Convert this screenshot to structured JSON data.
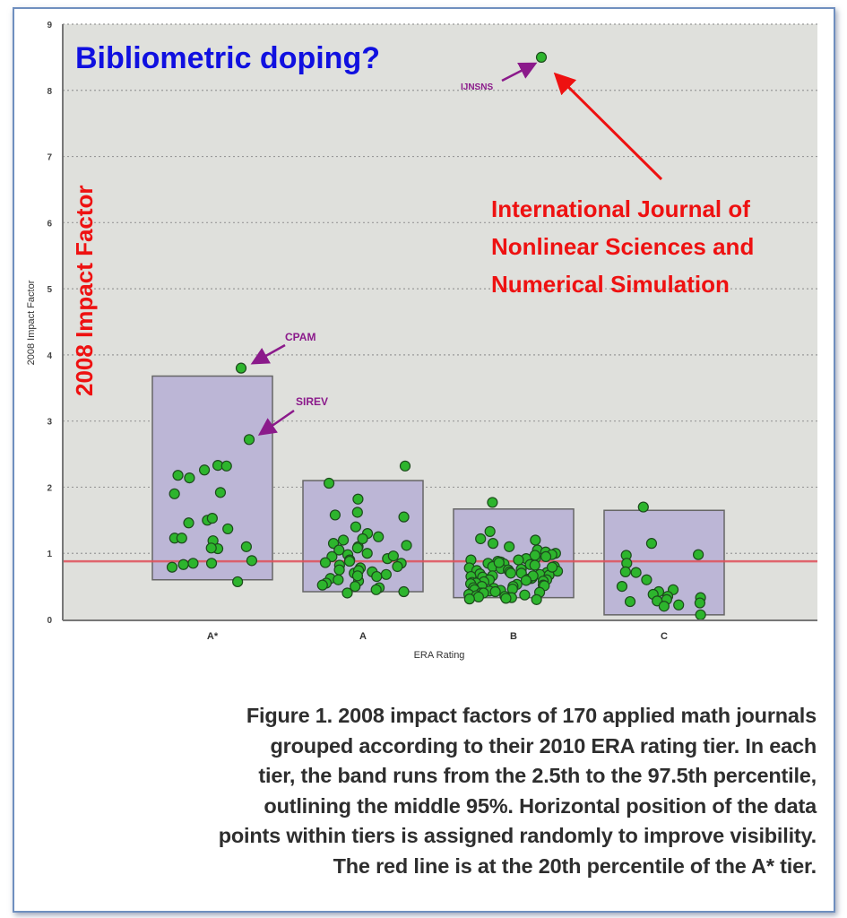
{
  "overlay": {
    "headline": "Bibliometric doping?",
    "yaxis_overlay": "2008 Impact Factor",
    "callout_lines": [
      "International Journal of",
      "Nonlinear Sciences and",
      "Numerical Simulation"
    ],
    "colors": {
      "headline": "#1010e0",
      "callout": "#ee1111",
      "label": "#8b1a8b"
    }
  },
  "chart_data": {
    "type": "scatter",
    "xlabel": "ERA Rating",
    "ylabel": "2008 Impact Factor",
    "ylim": [
      0,
      9
    ],
    "yticks": [
      "0",
      "1",
      "2",
      "3",
      "4",
      "5",
      "6",
      "7",
      "8",
      "9"
    ],
    "categories": [
      "A*",
      "A",
      "B",
      "C"
    ],
    "grid": "horizontal dotted",
    "reference_line": {
      "value": 0.88,
      "color": "#e0505a"
    },
    "bands": [
      {
        "tier": "A*",
        "low": 0.6,
        "high": 3.68
      },
      {
        "tier": "A",
        "low": 0.42,
        "high": 2.1
      },
      {
        "tier": "B",
        "low": 0.33,
        "high": 1.67
      },
      {
        "tier": "C",
        "low": 0.07,
        "high": 1.65
      }
    ],
    "points": {
      "A*": [
        0.85,
        2.33,
        2.18,
        2.14,
        1.5,
        1.19,
        1.23,
        1.1,
        1.92,
        2.26,
        0.85,
        0.57,
        3.8,
        2.72,
        2.32,
        1.9,
        1.53,
        1.46,
        1.37,
        1.23,
        1.07,
        1.08,
        0.83,
        0.79,
        0.89
      ],
      "A": [
        2.32,
        2.06,
        1.82,
        1.55,
        1.58,
        1.4,
        1.3,
        1.25,
        1.2,
        1.15,
        1.12,
        1.1,
        1.05,
        1.0,
        0.98,
        0.95,
        0.92,
        0.9,
        0.88,
        0.86,
        0.85,
        0.82,
        0.8,
        0.78,
        0.75,
        0.72,
        0.7,
        0.68,
        0.65,
        0.62,
        0.6,
        0.58,
        0.55,
        0.52,
        0.5,
        0.48,
        0.45,
        0.42,
        0.4,
        1.62,
        1.22,
        1.08,
        0.96,
        0.74,
        0.66
      ],
      "B": [
        8.5,
        1.77,
        1.33,
        1.2,
        1.22,
        1.15,
        1.05,
        1.02,
        1.0,
        0.98,
        0.95,
        0.93,
        0.92,
        0.9,
        0.9,
        0.88,
        0.87,
        0.85,
        0.84,
        0.83,
        0.82,
        0.8,
        0.8,
        0.78,
        0.77,
        0.76,
        0.75,
        0.74,
        0.73,
        0.72,
        0.71,
        0.7,
        0.7,
        0.69,
        0.68,
        0.67,
        0.66,
        0.65,
        0.64,
        0.63,
        0.62,
        0.61,
        0.6,
        0.6,
        0.58,
        0.57,
        0.56,
        0.55,
        0.54,
        0.53,
        0.52,
        0.51,
        0.5,
        0.5,
        0.48,
        0.47,
        0.46,
        0.45,
        0.44,
        0.43,
        0.42,
        0.41,
        0.4,
        0.4,
        0.38,
        0.37,
        0.36,
        0.35,
        0.34,
        0.33,
        0.32,
        0.31,
        0.3,
        1.1,
        0.97,
        0.86,
        0.79,
        0.66,
        0.59
      ],
      "C": [
        1.7,
        1.15,
        0.97,
        0.98,
        0.85,
        0.72,
        0.71,
        0.6,
        0.5,
        0.45,
        0.42,
        0.38,
        0.35,
        0.33,
        0.3,
        0.28,
        0.27,
        0.25,
        0.22,
        0.2,
        0.07
      ]
    },
    "annotations": [
      {
        "label": "CPAM",
        "tier": "A*",
        "value": 3.8
      },
      {
        "label": "SIREV",
        "tier": "A*",
        "value": 2.72
      },
      {
        "label": "IJNSNS",
        "tier": "B",
        "value": 8.5
      }
    ],
    "point_color": "#2db52d",
    "band_color": "#bcb6d6"
  },
  "caption": [
    "Figure 1. 2008 impact factors of 170 applied math journals",
    "grouped according to their 2010 ERA rating tier. In each",
    "tier, the band runs from the 2.5th to the 97.5th percentile,",
    "outlining the middle 95%. Horizontal position of the data",
    "points within tiers is assigned randomly to improve visibility.",
    "The red line is at the 20th percentile of the A* tier."
  ]
}
